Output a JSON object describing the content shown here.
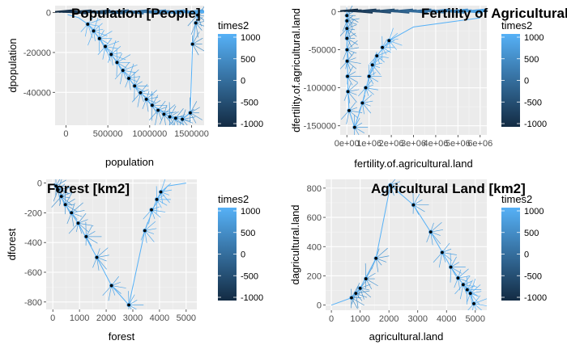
{
  "chart_data": [
    {
      "type": "scatter",
      "title": "Population [People]",
      "xlabel": "population",
      "ylabel": "dpopulation",
      "xlim": [
        -130000,
        1650000
      ],
      "ylim": [
        -56500,
        3500
      ],
      "xticks": [
        0,
        500000,
        1000000,
        1500000
      ],
      "xtick_labels": [
        "0",
        "500000",
        "1000000",
        "1500000"
      ],
      "yticks": [
        0,
        -20000,
        -40000
      ],
      "ytick_labels": [
        "0",
        "-20000",
        "-40000"
      ],
      "legend": {
        "title": "times2",
        "labels": [
          "1000",
          "500",
          "0",
          "-500",
          "-1000"
        ],
        "values": [
          1000,
          500,
          0,
          -500,
          -1000
        ],
        "position": "right"
      },
      "colors": {
        "low": "#132b43",
        "high": "#56b1f7"
      },
      "grid": true,
      "points": [
        {
          "x": 1512000,
          "y": -15800
        },
        {
          "x": 1551000,
          "y": -5200
        },
        {
          "x": 1572000,
          "y": -1200
        },
        {
          "x": 1485000,
          "y": -50300
        },
        {
          "x": 1390000,
          "y": -53500
        },
        {
          "x": 1310000,
          "y": -53000
        },
        {
          "x": 1240000,
          "y": -52300
        },
        {
          "x": 1170000,
          "y": -51000
        },
        {
          "x": 1100000,
          "y": -49000
        },
        {
          "x": 1030000,
          "y": -46500
        },
        {
          "x": 960000,
          "y": -43500
        },
        {
          "x": 890000,
          "y": -40200
        },
        {
          "x": 820000,
          "y": -36800
        },
        {
          "x": 750000,
          "y": -33000
        },
        {
          "x": 680000,
          "y": -29000
        },
        {
          "x": 610000,
          "y": -25000
        },
        {
          "x": 540000,
          "y": -21000
        },
        {
          "x": 470000,
          "y": -17000
        },
        {
          "x": 400000,
          "y": -13000
        },
        {
          "x": 330000,
          "y": -9200
        },
        {
          "x": 260000,
          "y": -5800
        }
      ],
      "trajectory": [
        {
          "x": 20000,
          "y": -1000
        },
        {
          "x": 150000,
          "y": -2500
        },
        {
          "x": 260000,
          "y": -5800
        },
        {
          "x": 400000,
          "y": -13000
        },
        {
          "x": 610000,
          "y": -25000
        },
        {
          "x": 820000,
          "y": -36800
        },
        {
          "x": 1030000,
          "y": -46500
        },
        {
          "x": 1240000,
          "y": -52300
        },
        {
          "x": 1390000,
          "y": -53500
        },
        {
          "x": 1485000,
          "y": -50300
        },
        {
          "x": 1512000,
          "y": -15800
        },
        {
          "x": 1551000,
          "y": -5200
        },
        {
          "x": 1572000,
          "y": -1200
        }
      ]
    },
    {
      "type": "scatter",
      "title": "Fertility of Agricultural land",
      "xlabel": "fertility.of.agricultural.land",
      "ylabel": "dfertility.of.agricultural.land",
      "xlim": [
        -300000,
        6300000
      ],
      "ylim": [
        -162000,
        8000
      ],
      "xticks": [
        0,
        1000000,
        2000000,
        3000000,
        4000000,
        5000000,
        6000000
      ],
      "xtick_labels": [
        "0e+00",
        "1e+06",
        "2e+06",
        "3e+06",
        "4e+06",
        "5e+06",
        "6e+06"
      ],
      "yticks": [
        0,
        -50000,
        -100000,
        -150000
      ],
      "ytick_labels": [
        "0",
        "-50000",
        "-100000",
        "-150000"
      ],
      "legend": {
        "title": "times2",
        "labels": [
          "1000",
          "500",
          "0",
          "-500",
          "-1000"
        ],
        "values": [
          1000,
          500,
          0,
          -500,
          -1000
        ],
        "position": "right"
      },
      "colors": {
        "low": "#132b43",
        "high": "#56b1f7"
      },
      "grid": true,
      "points": [
        {
          "x": 1500,
          "y": -5000
        },
        {
          "x": 3000,
          "y": -12000
        },
        {
          "x": 4000,
          "y": -22000
        },
        {
          "x": 5000,
          "y": -35000
        },
        {
          "x": 10000,
          "y": -50000
        },
        {
          "x": 15000,
          "y": -65000
        },
        {
          "x": 30000,
          "y": -85000
        },
        {
          "x": 50000,
          "y": -105000
        },
        {
          "x": 100000,
          "y": -130000
        },
        {
          "x": 350000,
          "y": -152000
        },
        {
          "x": 700000,
          "y": -120000
        },
        {
          "x": 850000,
          "y": -100000
        },
        {
          "x": 1000000,
          "y": -85000
        },
        {
          "x": 1150000,
          "y": -70000
        },
        {
          "x": 1350000,
          "y": -58000
        },
        {
          "x": 1600000,
          "y": -47000
        },
        {
          "x": 1900000,
          "y": -38000
        }
      ],
      "trajectory": [
        {
          "x": 1000,
          "y": 0
        },
        {
          "x": 3000,
          "y": -12000
        },
        {
          "x": 10000,
          "y": -50000
        },
        {
          "x": 50000,
          "y": -105000
        },
        {
          "x": 100000,
          "y": -130000
        },
        {
          "x": 350000,
          "y": -152000
        },
        {
          "x": 700000,
          "y": -120000
        },
        {
          "x": 1000000,
          "y": -85000
        },
        {
          "x": 1350000,
          "y": -58000
        },
        {
          "x": 1900000,
          "y": -38000
        },
        {
          "x": 3000000,
          "y": -20000
        },
        {
          "x": 6000000,
          "y": -8000
        }
      ]
    },
    {
      "type": "scatter",
      "title": "Forest [km2]",
      "xlabel": "forest",
      "ylabel": "dforest",
      "xlim": [
        -250,
        5400
      ],
      "ylim": [
        -850,
        25
      ],
      "xticks": [
        0,
        1000,
        2000,
        3000,
        4000,
        5000
      ],
      "xtick_labels": [
        "0",
        "1000",
        "2000",
        "3000",
        "4000",
        "5000"
      ],
      "yticks": [
        0,
        -200,
        -400,
        -600,
        -800
      ],
      "ytick_labels": [
        "0",
        "-200",
        "-400",
        "-600",
        "-800"
      ],
      "legend": {
        "title": "times2",
        "labels": [
          "1000",
          "500",
          "0",
          "-500",
          "-1000"
        ],
        "values": [
          1000,
          500,
          0,
          -500,
          -1000
        ],
        "position": "right"
      },
      "colors": {
        "low": "#132b43",
        "high": "#56b1f7"
      },
      "grid": true,
      "points": [
        {
          "x": 120,
          "y": -20
        },
        {
          "x": 200,
          "y": -45
        },
        {
          "x": 320,
          "y": -90
        },
        {
          "x": 470,
          "y": -145
        },
        {
          "x": 700,
          "y": -200
        },
        {
          "x": 950,
          "y": -270
        },
        {
          "x": 1250,
          "y": -360
        },
        {
          "x": 1650,
          "y": -500
        },
        {
          "x": 2200,
          "y": -690
        },
        {
          "x": 2850,
          "y": -820
        },
        {
          "x": 3450,
          "y": -320
        },
        {
          "x": 3700,
          "y": -180
        },
        {
          "x": 3900,
          "y": -110
        },
        {
          "x": 4050,
          "y": -60
        }
      ],
      "trajectory": [
        {
          "x": 50,
          "y": 0
        },
        {
          "x": 200,
          "y": -45
        },
        {
          "x": 470,
          "y": -145
        },
        {
          "x": 950,
          "y": -270
        },
        {
          "x": 1650,
          "y": -500
        },
        {
          "x": 2200,
          "y": -690
        },
        {
          "x": 2850,
          "y": -820
        },
        {
          "x": 3450,
          "y": -320
        },
        {
          "x": 3900,
          "y": -110
        },
        {
          "x": 4300,
          "y": -20
        },
        {
          "x": 5000,
          "y": 0
        }
      ]
    },
    {
      "type": "scatter",
      "title": "Agricultural Land [km2]",
      "xlabel": "agricultural.land",
      "ylabel": "dagricultural.land",
      "xlim": [
        -200,
        5400
      ],
      "ylim": [
        -35,
        860
      ],
      "xticks": [
        0,
        1000,
        2000,
        3000,
        4000,
        5000
      ],
      "xtick_labels": [
        "0",
        "1000",
        "2000",
        "3000",
        "4000",
        "5000"
      ],
      "yticks": [
        0,
        200,
        400,
        600,
        800
      ],
      "ytick_labels": [
        "0",
        "200",
        "400",
        "600",
        "800"
      ],
      "legend": {
        "title": "times2",
        "labels": [
          "1000",
          "500",
          "0",
          "-500",
          "-1000"
        ],
        "values": [
          1000,
          500,
          0,
          -500,
          -1000
        ],
        "position": "right"
      },
      "colors": {
        "low": "#132b43",
        "high": "#56b1f7"
      },
      "grid": true,
      "points": [
        {
          "x": 700,
          "y": 50
        },
        {
          "x": 850,
          "y": 80
        },
        {
          "x": 1000,
          "y": 115
        },
        {
          "x": 1200,
          "y": 180
        },
        {
          "x": 1550,
          "y": 320
        },
        {
          "x": 2050,
          "y": 820
        },
        {
          "x": 2850,
          "y": 685
        },
        {
          "x": 3450,
          "y": 500
        },
        {
          "x": 3850,
          "y": 360
        },
        {
          "x": 4150,
          "y": 260
        },
        {
          "x": 4400,
          "y": 185
        },
        {
          "x": 4580,
          "y": 140
        },
        {
          "x": 4720,
          "y": 105
        },
        {
          "x": 4830,
          "y": 80
        },
        {
          "x": 4950,
          "y": 10
        }
      ],
      "trajectory": [
        {
          "x": 0,
          "y": 0
        },
        {
          "x": 700,
          "y": 50
        },
        {
          "x": 1000,
          "y": 115
        },
        {
          "x": 1550,
          "y": 320
        },
        {
          "x": 2050,
          "y": 820
        },
        {
          "x": 2850,
          "y": 685
        },
        {
          "x": 3450,
          "y": 500
        },
        {
          "x": 4150,
          "y": 260
        },
        {
          "x": 4580,
          "y": 140
        },
        {
          "x": 4830,
          "y": 80
        },
        {
          "x": 4950,
          "y": 10
        }
      ]
    }
  ]
}
